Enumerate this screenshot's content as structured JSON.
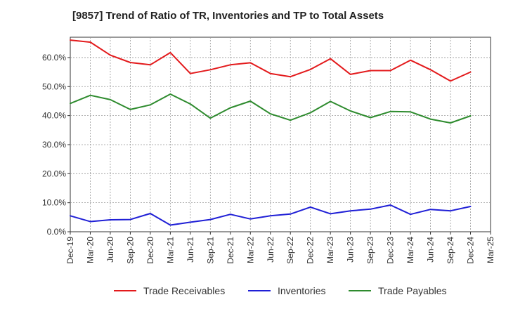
{
  "chart_data": {
    "type": "line",
    "title": "[9857]  Trend of Ratio of TR, Inventories and TP to Total Assets",
    "xlabel": "",
    "ylabel": "",
    "x": [
      "Dec-19",
      "Mar-20",
      "Jun-20",
      "Sep-20",
      "Dec-20",
      "Mar-21",
      "Jun-21",
      "Sep-21",
      "Dec-21",
      "Mar-22",
      "Jun-22",
      "Sep-22",
      "Dec-22",
      "Mar-23",
      "Jun-23",
      "Sep-23",
      "Dec-23",
      "Mar-24",
      "Jun-24",
      "Sep-24",
      "Dec-24"
    ],
    "x_ticks": [
      "Dec-19",
      "Mar-20",
      "Jun-20",
      "Sep-20",
      "Dec-20",
      "Mar-21",
      "Jun-21",
      "Sep-21",
      "Dec-21",
      "Mar-22",
      "Jun-22",
      "Sep-22",
      "Dec-22",
      "Mar-23",
      "Jun-23",
      "Sep-23",
      "Dec-23",
      "Mar-24",
      "Jun-24",
      "Sep-24",
      "Dec-24",
      "Mar-25"
    ],
    "y_ticks": [
      "0.0%",
      "10.0%",
      "20.0%",
      "30.0%",
      "40.0%",
      "50.0%",
      "60.0%"
    ],
    "ylim": [
      0,
      67
    ],
    "grid": true,
    "legend_position": "bottom",
    "series": [
      {
        "name": "Trade Receivables",
        "color": "#e31a1c",
        "values": [
          66.0,
          65.3,
          60.8,
          58.3,
          57.5,
          61.7,
          54.5,
          55.8,
          57.5,
          58.2,
          54.5,
          53.4,
          55.9,
          59.6,
          54.2,
          55.5,
          55.5,
          59.1,
          55.8,
          51.9,
          55.0
        ]
      },
      {
        "name": "Inventories",
        "color": "#1f1fd6",
        "values": [
          5.5,
          3.5,
          4.1,
          4.2,
          6.3,
          2.3,
          3.3,
          4.2,
          6.0,
          4.4,
          5.5,
          6.1,
          8.5,
          6.2,
          7.2,
          7.8,
          9.2,
          6.0,
          7.7,
          7.2,
          8.7
        ]
      },
      {
        "name": "Trade Payables",
        "color": "#2e8b2e",
        "values": [
          44.2,
          47.0,
          45.5,
          42.1,
          43.7,
          47.4,
          44.0,
          39.1,
          42.7,
          45.0,
          40.6,
          38.4,
          41.0,
          44.9,
          41.6,
          39.3,
          41.4,
          41.3,
          38.8,
          37.5,
          39.9
        ]
      }
    ]
  }
}
